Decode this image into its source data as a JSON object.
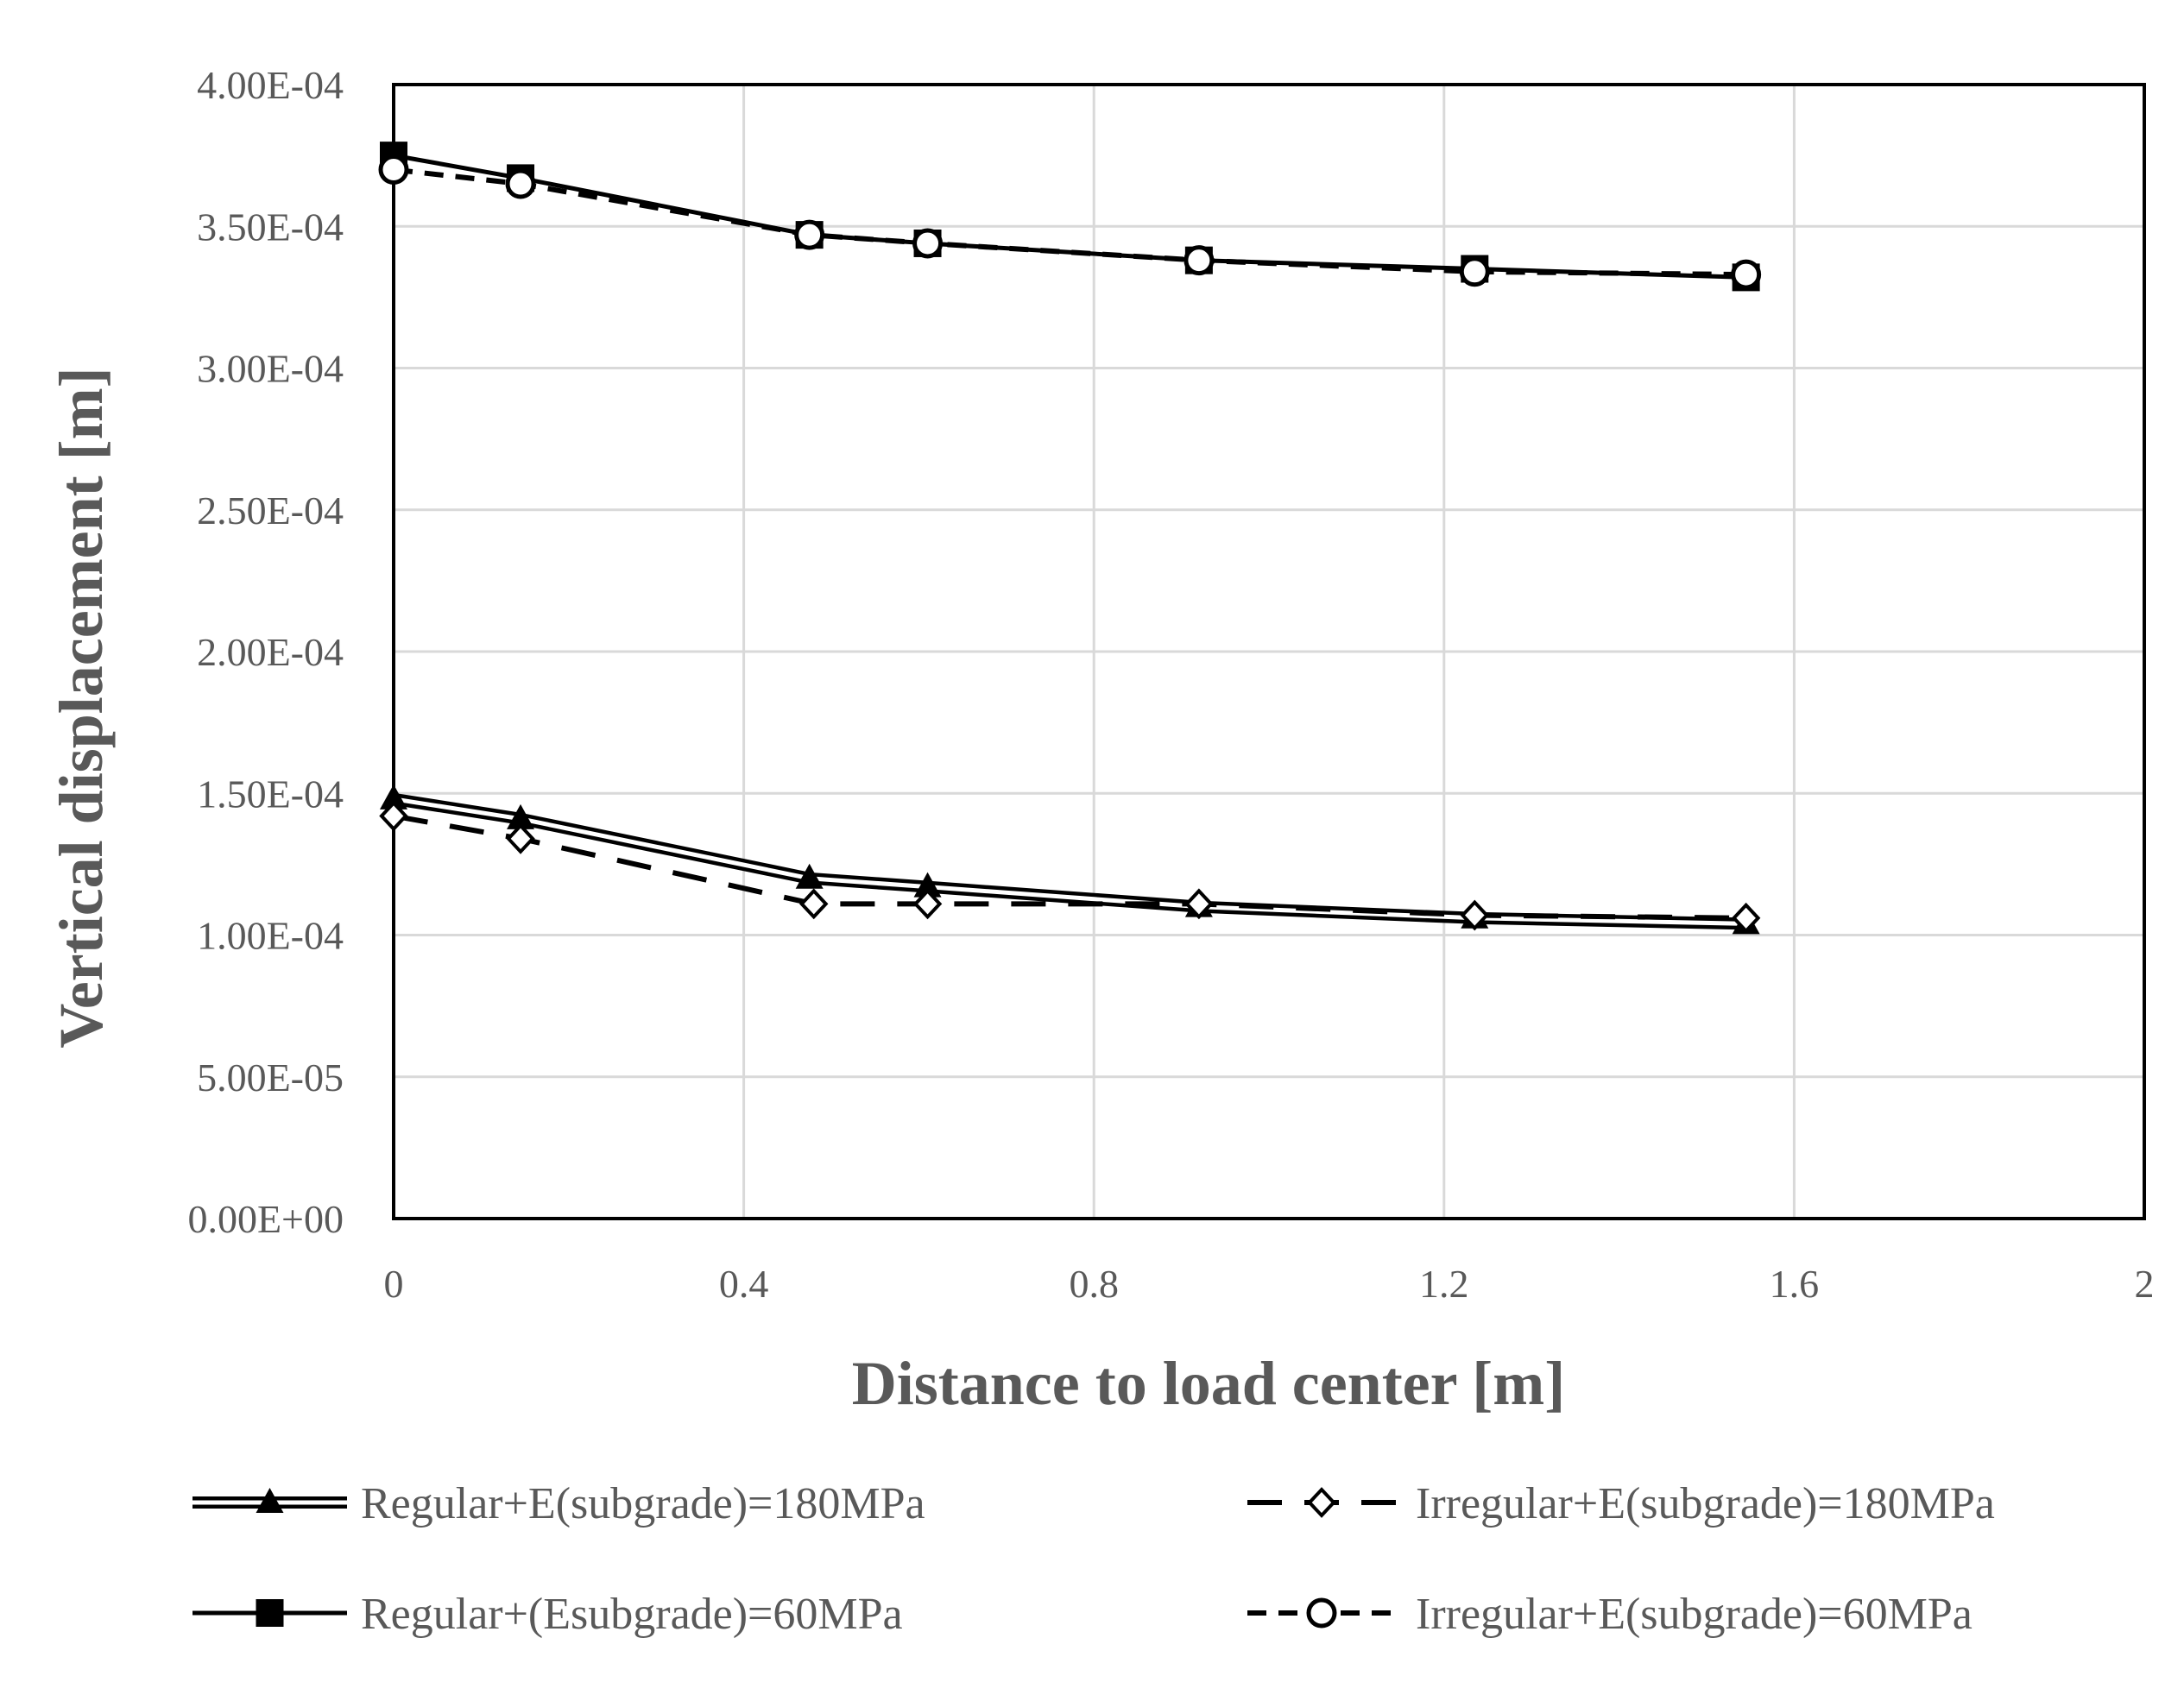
{
  "chart_data": {
    "type": "line",
    "title": "",
    "xlabel": "Distance to load center [m]",
    "ylabel": "Vertical displacement [m]",
    "xlim": [
      0,
      2
    ],
    "ylim": [
      0,
      0.0004
    ],
    "x_ticks": [
      0,
      0.4,
      0.8,
      1.2,
      1.6,
      2
    ],
    "x_tick_labels": [
      "0",
      "0.4",
      "0.8",
      "1.2",
      "1.6",
      "2"
    ],
    "y_ticks": [
      0,
      5e-05,
      0.0001,
      0.00015,
      0.0002,
      0.00025,
      0.0003,
      0.00035,
      0.0004
    ],
    "y_tick_labels": [
      "0.00E+00",
      "5.00E-05",
      "1.00E-04",
      "1.50E-04",
      "2.00E-04",
      "2.50E-04",
      "3.00E-04",
      "3.50E-04",
      "4.00E-04"
    ],
    "grid": true,
    "legend_position": "bottom",
    "series": [
      {
        "name": "Regular+E(subgrade)=180MPa",
        "line": "double",
        "marker": "triangle-filled",
        "color": "#000000",
        "x": [
          0,
          0.145,
          0.475,
          0.61,
          0.92,
          1.235,
          1.545
        ],
        "y": [
          0.000148,
          0.000141,
          0.00012,
          0.000117,
          0.00011,
          0.000106,
          0.000104
        ]
      },
      {
        "name": "Irregular+E(subgrade)=180MPa",
        "line": "dashed",
        "marker": "diamond-open",
        "color": "#000000",
        "x": [
          0,
          0.145,
          0.48,
          0.61,
          0.92,
          1.235,
          1.545
        ],
        "y": [
          0.000142,
          0.000134,
          0.000111,
          0.000111,
          0.000111,
          0.000107,
          0.000106
        ]
      },
      {
        "name": "Regular+(Esubgrade)=60MPa",
        "line": "solid",
        "marker": "square-filled",
        "color": "#000000",
        "x": [
          0,
          0.145,
          0.475,
          0.61,
          0.92,
          1.235,
          1.545
        ],
        "y": [
          0.000375,
          0.000367,
          0.000347,
          0.000344,
          0.000338,
          0.000335,
          0.000332
        ]
      },
      {
        "name": "Irregular+E(subgrade)=60MPa",
        "line": "short-dashed",
        "marker": "circle-open",
        "color": "#000000",
        "x": [
          0,
          0.145,
          0.475,
          0.61,
          0.92,
          1.235,
          1.545
        ],
        "y": [
          0.00037,
          0.000365,
          0.000347,
          0.000344,
          0.000338,
          0.000334,
          0.000333
        ]
      }
    ]
  },
  "colors": {
    "grid": "#d9d9d9",
    "axis": "#000000",
    "text": "#595959"
  }
}
